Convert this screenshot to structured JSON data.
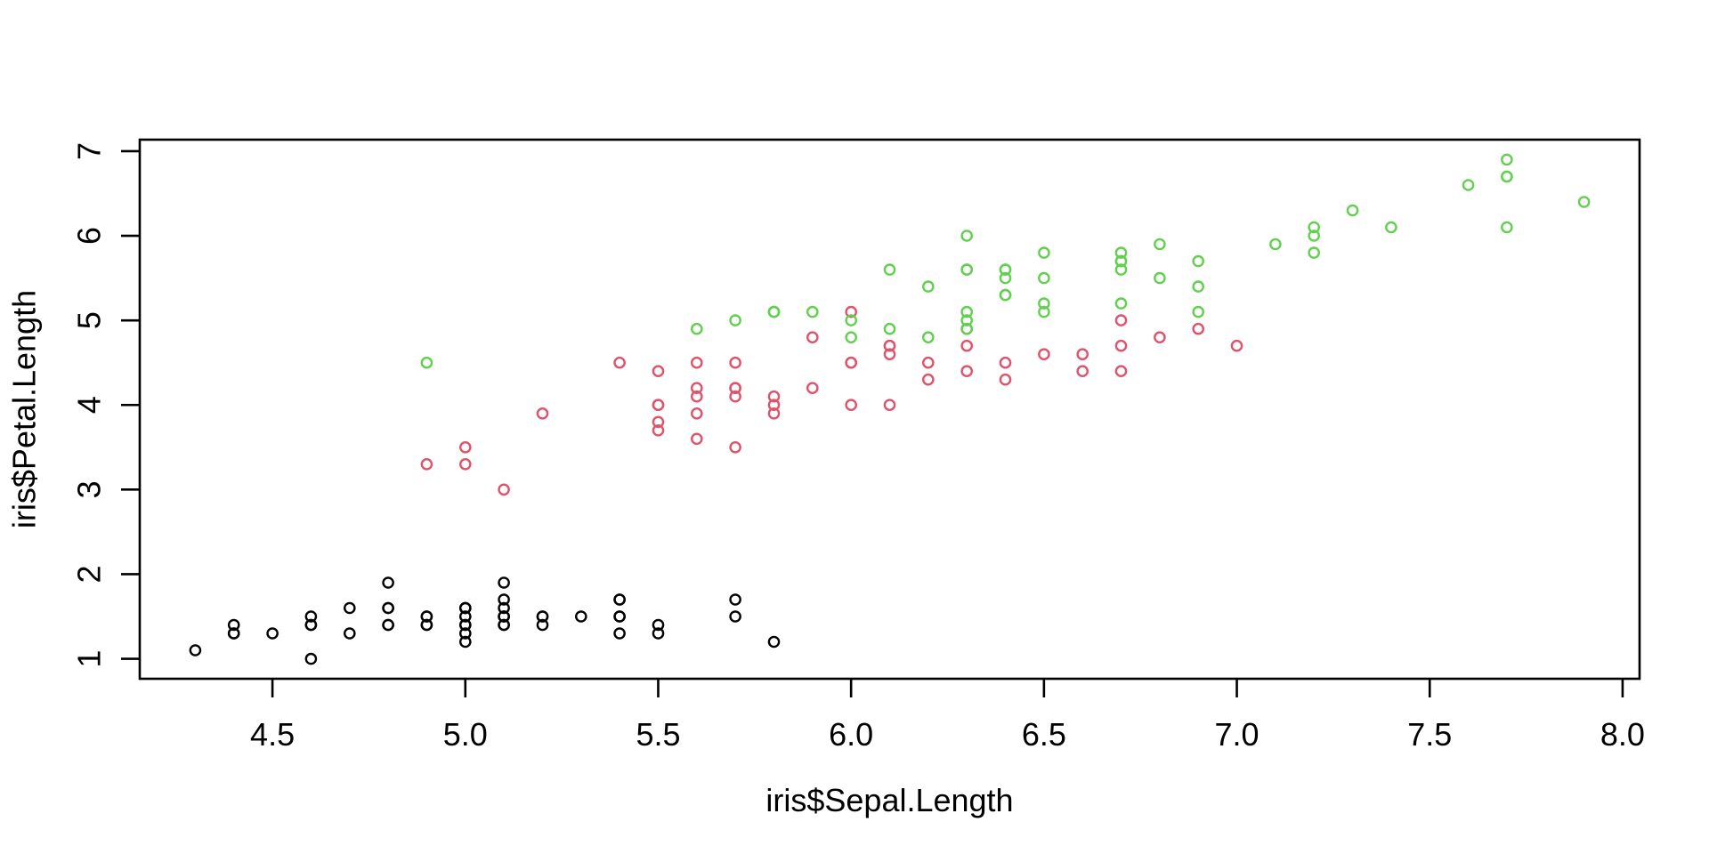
{
  "figure": {
    "background": "#ffffff",
    "axis_color": "#000000"
  },
  "chart_data": {
    "type": "scatter",
    "title": "",
    "xlabel": "iris$Sepal.Length",
    "ylabel": "iris$Petal.Length",
    "xlim": [
      4.156,
      8.044
    ],
    "ylim": [
      0.764,
      7.136
    ],
    "x_ticks": [
      "4.5",
      "5.0",
      "5.5",
      "6.0",
      "6.5",
      "7.0",
      "7.5",
      "8.0"
    ],
    "y_ticks": [
      "1",
      "2",
      "3",
      "4",
      "5",
      "6",
      "7"
    ],
    "grid": false,
    "legend_position": "none",
    "marker": "open-circle",
    "series": [
      {
        "name": "black",
        "color": "#000000",
        "points": [
          [
            5.1,
            1.4
          ],
          [
            4.9,
            1.4
          ],
          [
            4.7,
            1.3
          ],
          [
            4.6,
            1.5
          ],
          [
            5.0,
            1.4
          ],
          [
            5.4,
            1.7
          ],
          [
            4.6,
            1.4
          ],
          [
            5.0,
            1.5
          ],
          [
            4.4,
            1.4
          ],
          [
            4.9,
            1.5
          ],
          [
            5.4,
            1.5
          ],
          [
            4.8,
            1.6
          ],
          [
            4.8,
            1.4
          ],
          [
            4.3,
            1.1
          ],
          [
            5.8,
            1.2
          ],
          [
            5.7,
            1.5
          ],
          [
            5.4,
            1.3
          ],
          [
            5.1,
            1.4
          ],
          [
            5.7,
            1.7
          ],
          [
            5.1,
            1.5
          ],
          [
            5.4,
            1.7
          ],
          [
            5.1,
            1.5
          ],
          [
            4.6,
            1.0
          ],
          [
            5.1,
            1.7
          ],
          [
            4.8,
            1.9
          ],
          [
            5.0,
            1.6
          ],
          [
            5.0,
            1.6
          ],
          [
            5.2,
            1.5
          ],
          [
            5.2,
            1.4
          ],
          [
            4.7,
            1.6
          ],
          [
            4.8,
            1.6
          ],
          [
            5.4,
            1.5
          ],
          [
            5.2,
            1.5
          ],
          [
            5.5,
            1.4
          ],
          [
            4.9,
            1.5
          ],
          [
            5.0,
            1.2
          ],
          [
            5.5,
            1.3
          ],
          [
            4.9,
            1.4
          ],
          [
            4.4,
            1.3
          ],
          [
            5.1,
            1.5
          ],
          [
            5.0,
            1.3
          ],
          [
            4.5,
            1.3
          ],
          [
            4.4,
            1.3
          ],
          [
            5.0,
            1.6
          ],
          [
            5.1,
            1.9
          ],
          [
            4.8,
            1.4
          ],
          [
            5.1,
            1.6
          ],
          [
            4.6,
            1.4
          ],
          [
            5.3,
            1.5
          ],
          [
            5.0,
            1.4
          ]
        ]
      },
      {
        "name": "red",
        "color": "#DF536B",
        "points": [
          [
            7.0,
            4.7
          ],
          [
            6.4,
            4.5
          ],
          [
            6.9,
            4.9
          ],
          [
            5.5,
            4.0
          ],
          [
            6.5,
            4.6
          ],
          [
            5.7,
            4.5
          ],
          [
            6.3,
            4.7
          ],
          [
            4.9,
            3.3
          ],
          [
            6.6,
            4.6
          ],
          [
            5.2,
            3.9
          ],
          [
            5.0,
            3.5
          ],
          [
            5.9,
            4.2
          ],
          [
            6.0,
            4.0
          ],
          [
            6.1,
            4.7
          ],
          [
            5.6,
            3.6
          ],
          [
            6.7,
            4.4
          ],
          [
            5.6,
            4.5
          ],
          [
            5.8,
            4.1
          ],
          [
            6.2,
            4.5
          ],
          [
            5.6,
            3.9
          ],
          [
            5.9,
            4.8
          ],
          [
            6.1,
            4.0
          ],
          [
            6.3,
            4.9
          ],
          [
            6.1,
            4.7
          ],
          [
            6.4,
            4.3
          ],
          [
            6.6,
            4.4
          ],
          [
            6.8,
            4.8
          ],
          [
            6.7,
            5.0
          ],
          [
            6.0,
            4.5
          ],
          [
            5.7,
            3.5
          ],
          [
            5.5,
            3.8
          ],
          [
            5.5,
            3.7
          ],
          [
            5.8,
            3.9
          ],
          [
            6.0,
            5.1
          ],
          [
            5.4,
            4.5
          ],
          [
            6.0,
            4.5
          ],
          [
            6.7,
            4.7
          ],
          [
            6.3,
            4.4
          ],
          [
            5.6,
            4.1
          ],
          [
            5.5,
            4.0
          ],
          [
            5.5,
            4.4
          ],
          [
            6.1,
            4.6
          ],
          [
            5.8,
            4.0
          ],
          [
            5.0,
            3.3
          ],
          [
            5.6,
            4.2
          ],
          [
            5.7,
            4.2
          ],
          [
            5.7,
            4.2
          ],
          [
            6.2,
            4.3
          ],
          [
            5.1,
            3.0
          ],
          [
            5.7,
            4.1
          ]
        ]
      },
      {
        "name": "green",
        "color": "#61D04F",
        "points": [
          [
            6.3,
            6.0
          ],
          [
            5.8,
            5.1
          ],
          [
            7.1,
            5.9
          ],
          [
            6.3,
            5.6
          ],
          [
            6.5,
            5.8
          ],
          [
            7.6,
            6.6
          ],
          [
            4.9,
            4.5
          ],
          [
            7.3,
            6.3
          ],
          [
            6.7,
            5.8
          ],
          [
            7.2,
            6.1
          ],
          [
            6.5,
            5.1
          ],
          [
            6.4,
            5.3
          ],
          [
            6.8,
            5.5
          ],
          [
            5.7,
            5.0
          ],
          [
            5.8,
            5.1
          ],
          [
            6.4,
            5.3
          ],
          [
            6.5,
            5.5
          ],
          [
            7.7,
            6.7
          ],
          [
            7.7,
            6.9
          ],
          [
            6.0,
            5.0
          ],
          [
            6.9,
            5.7
          ],
          [
            5.6,
            4.9
          ],
          [
            7.7,
            6.7
          ],
          [
            6.3,
            4.9
          ],
          [
            6.7,
            5.7
          ],
          [
            7.2,
            6.0
          ],
          [
            6.2,
            4.8
          ],
          [
            6.1,
            4.9
          ],
          [
            6.4,
            5.6
          ],
          [
            7.2,
            5.8
          ],
          [
            7.4,
            6.1
          ],
          [
            7.9,
            6.4
          ],
          [
            6.4,
            5.6
          ],
          [
            6.3,
            5.1
          ],
          [
            6.1,
            5.6
          ],
          [
            7.7,
            6.1
          ],
          [
            6.3,
            5.6
          ],
          [
            6.4,
            5.5
          ],
          [
            6.0,
            4.8
          ],
          [
            6.9,
            5.4
          ],
          [
            6.7,
            5.6
          ],
          [
            6.9,
            5.1
          ],
          [
            5.8,
            5.1
          ],
          [
            6.8,
            5.9
          ],
          [
            6.7,
            5.7
          ],
          [
            6.7,
            5.2
          ],
          [
            6.3,
            5.0
          ],
          [
            6.5,
            5.2
          ],
          [
            6.2,
            5.4
          ],
          [
            5.9,
            5.1
          ]
        ]
      }
    ]
  }
}
